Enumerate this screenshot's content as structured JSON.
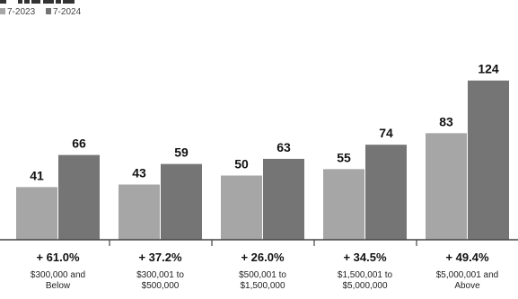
{
  "chart_data": {
    "type": "bar",
    "categories": [
      "$300,000 and Below",
      "$300,001 to $500,000",
      "$500,001 to $1,500,000",
      "$1,500,001 to $5,000,000",
      "$5,000,001 and Above"
    ],
    "category_lines": [
      [
        "$300,000 and",
        "Below"
      ],
      [
        "$300,001 to",
        "$500,000"
      ],
      [
        "$500,001 to",
        "$1,500,000"
      ],
      [
        "$1,500,001 to",
        "$5,000,000"
      ],
      [
        "$5,000,001 and",
        "Above"
      ]
    ],
    "series": [
      {
        "name": "7-2023",
        "values": [
          41,
          43,
          50,
          55,
          83
        ]
      },
      {
        "name": "7-2024",
        "values": [
          66,
          59,
          63,
          74,
          124
        ]
      }
    ],
    "changes": [
      "+ 61.0%",
      "+ 37.2%",
      "+ 26.0%",
      "+ 34.5%",
      "+ 49.4%"
    ],
    "title": "",
    "xlabel": "",
    "ylabel": "",
    "ylim": [
      0,
      130
    ],
    "grid": false,
    "legend_position": "top-left",
    "colors": {
      "series_2023": "#a6a6a6",
      "series_2024": "#757575",
      "axis": "#444444",
      "text": "#111111"
    }
  }
}
